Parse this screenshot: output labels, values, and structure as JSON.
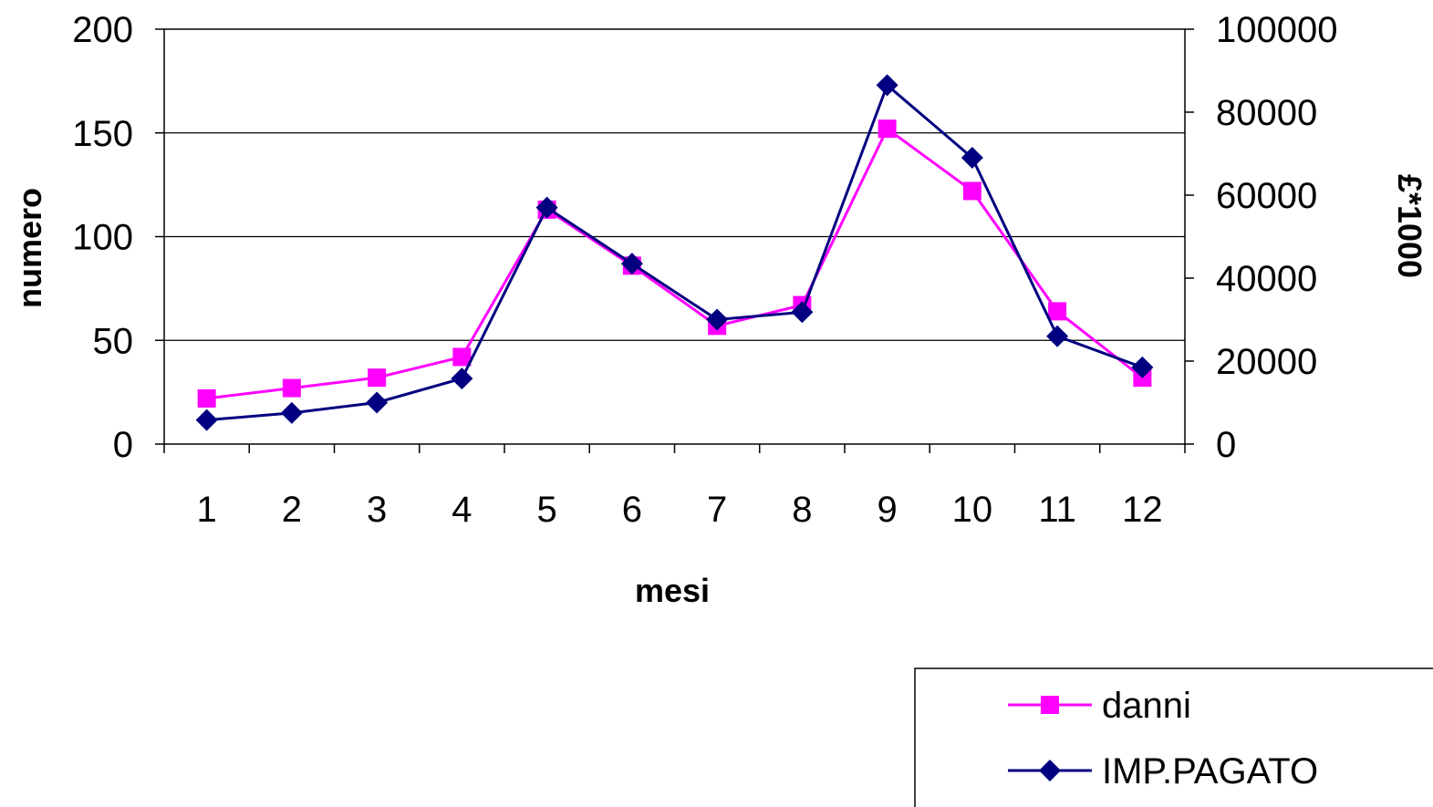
{
  "chart_data": {
    "type": "line",
    "categories": [
      "1",
      "2",
      "3",
      "4",
      "5",
      "6",
      "7",
      "8",
      "9",
      "10",
      "11",
      "12"
    ],
    "xlabel": "mesi",
    "ylabel": "numero",
    "y2label": "£*1000",
    "ylim": [
      0,
      200
    ],
    "y2lim": [
      0,
      100000
    ],
    "yticks": [
      "0",
      "50",
      "100",
      "150",
      "200"
    ],
    "y2ticks": [
      "0",
      "20000",
      "40000",
      "60000",
      "80000",
      "100000"
    ],
    "grid": true,
    "legend_position": "bottom-right",
    "series": [
      {
        "name": "danni",
        "axis": "left",
        "color": "#ff00ff",
        "marker": "square",
        "values": [
          22,
          27,
          32,
          42,
          113,
          86,
          57,
          67,
          152,
          122,
          64,
          32
        ]
      },
      {
        "name": "IMP.PAGATO",
        "axis": "right",
        "color": "#000080",
        "marker": "diamond",
        "values": [
          5800,
          7500,
          10000,
          15800,
          57000,
          43500,
          30000,
          31800,
          86500,
          69000,
          26000,
          18500
        ]
      }
    ]
  }
}
